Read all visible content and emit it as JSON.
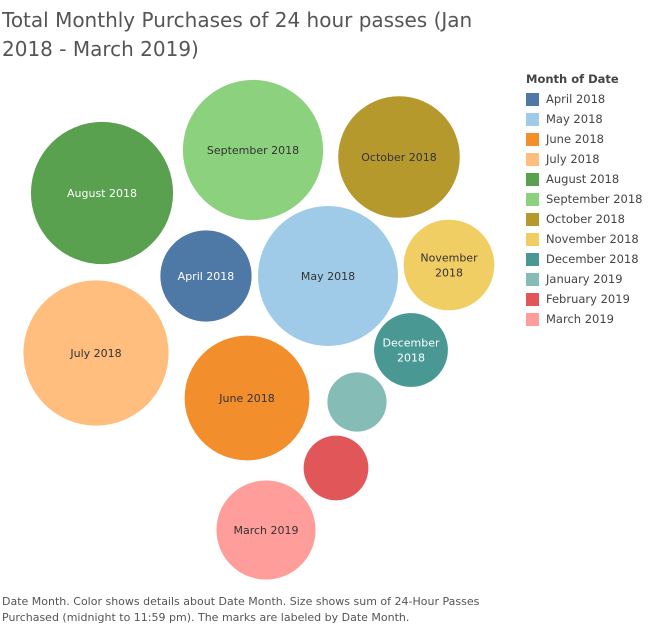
{
  "title": "Total Monthly Purchases of 24 hour passes (Jan 2018 - March 2019)",
  "caption": "Date Month.  Color shows details about Date Month.  Size shows sum of 24-Hour Passes Purchased (midnight to 11:59 pm).  The marks are labeled by Date Month.",
  "legend_title": "Month of Date",
  "chart_data": {
    "type": "bubble",
    "title": "Total Monthly Purchases of 24 hour passes (Jan 2018 - March 2019)",
    "size_measure": "24-Hour Passes Purchased (midnight to 11:59 pm)",
    "color_dimension": "Month of Date",
    "series": [
      {
        "name": "April 2018",
        "label": "April 2018",
        "relative_size": 0.425,
        "color": "#4e79a7",
        "label_color": "#ffffff"
      },
      {
        "name": "May 2018",
        "label": "May 2018",
        "relative_size": 1.0,
        "color": "#a0cbe8",
        "label_color": "#333333"
      },
      {
        "name": "June 2018",
        "label": "June 2018",
        "relative_size": 0.794,
        "color": "#f28e2b",
        "label_color": "#333333"
      },
      {
        "name": "July 2018",
        "label": "July 2018",
        "relative_size": 1.076,
        "color": "#ffbe7d",
        "label_color": "#333333"
      },
      {
        "name": "August 2018",
        "label": "August 2018",
        "relative_size": 1.031,
        "color": "#59a14f",
        "label_color": "#ffffff"
      },
      {
        "name": "September 2018",
        "label": "September 2018",
        "relative_size": 1.003,
        "color": "#8cd17d",
        "label_color": "#333333"
      },
      {
        "name": "October 2018",
        "label": "October 2018",
        "relative_size": 0.754,
        "color": "#b6992d",
        "label_color": "#333333"
      },
      {
        "name": "November 2018",
        "label": "November\n2018",
        "relative_size": 0.419,
        "color": "#f1ce63",
        "label_color": "#333333"
      },
      {
        "name": "December 2018",
        "label": "December\n2018",
        "relative_size": 0.278,
        "color": "#499894",
        "label_color": "#ffffff"
      },
      {
        "name": "January 2019",
        "label": "",
        "relative_size": 0.179,
        "color": "#86bcb6",
        "label_color": "#ffffff"
      },
      {
        "name": "February 2019",
        "label": "",
        "relative_size": 0.214,
        "color": "#e15759",
        "label_color": "#ffffff"
      },
      {
        "name": "March 2019",
        "label": "March 2019",
        "relative_size": 0.501,
        "color": "#ff9d9a",
        "label_color": "#333333"
      }
    ]
  }
}
